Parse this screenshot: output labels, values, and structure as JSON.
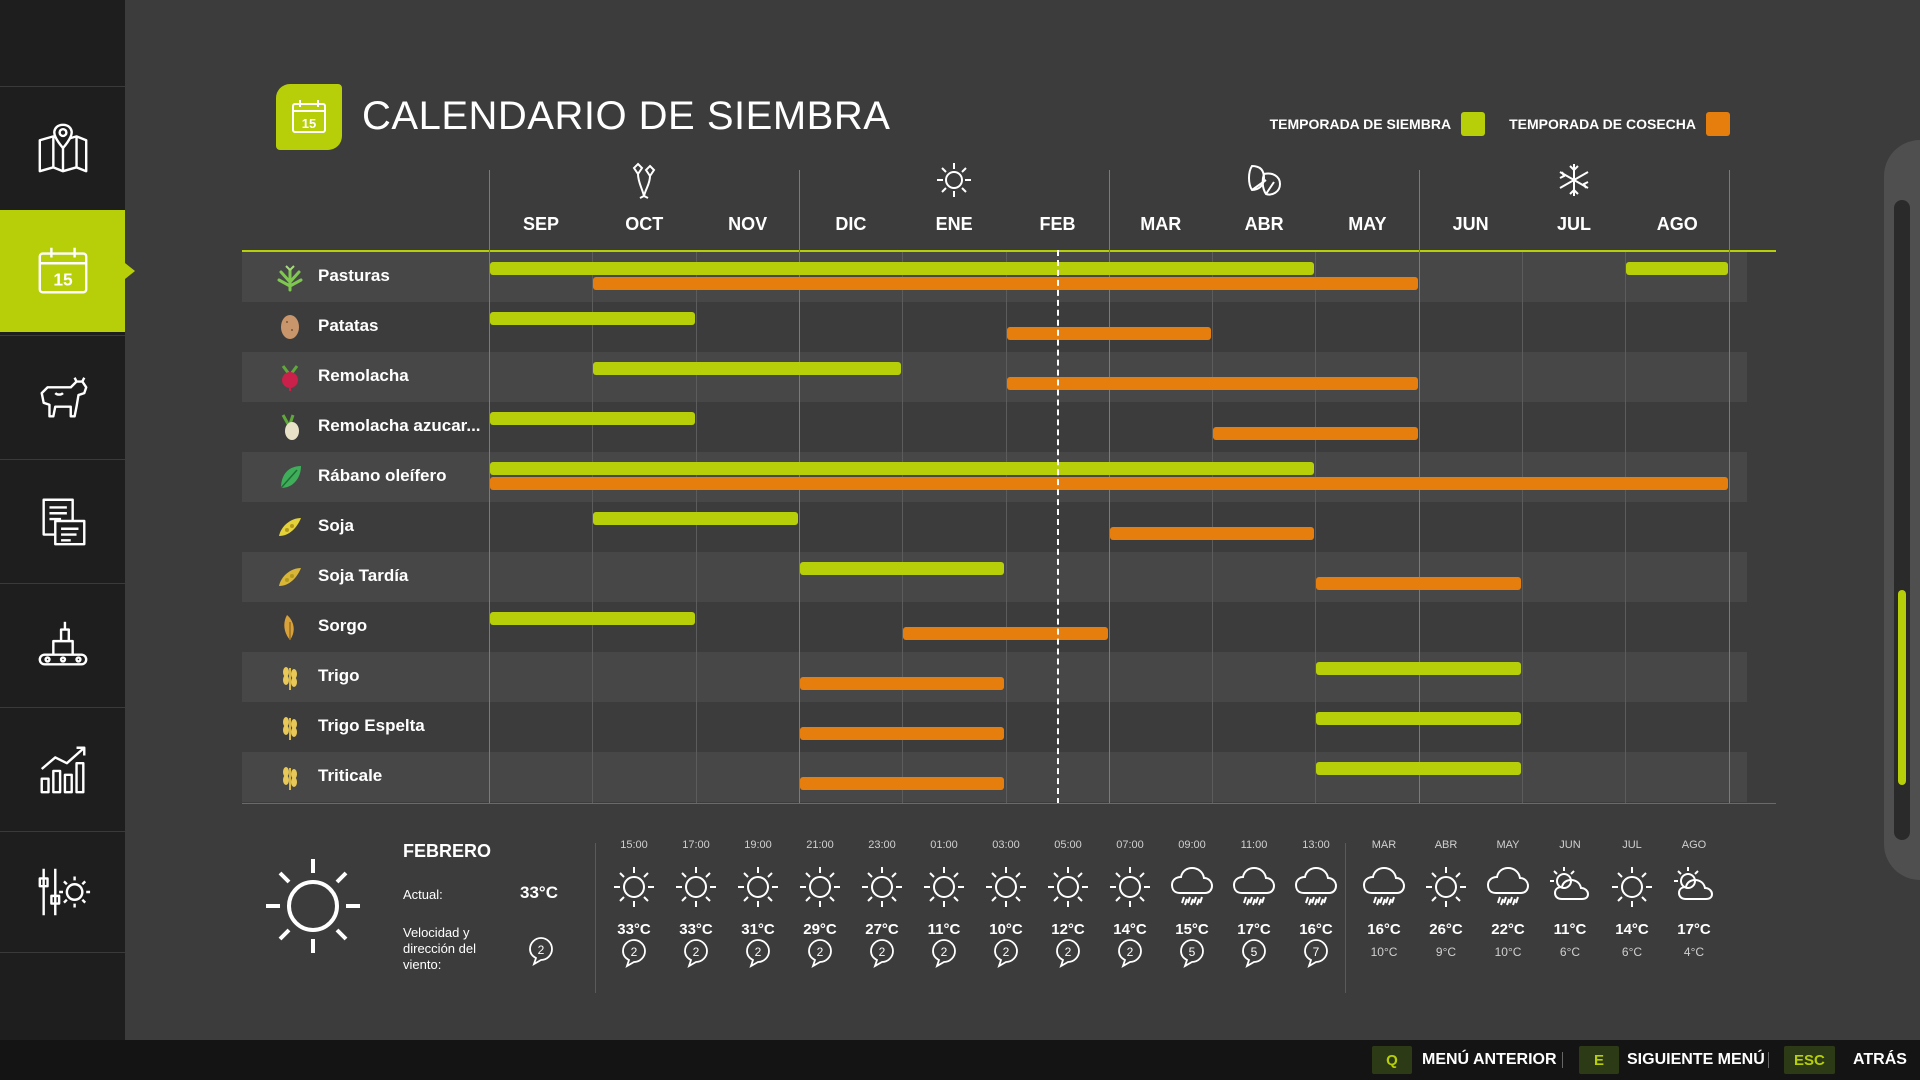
{
  "app": {
    "title": "CALENDARIO DE SIEMBRA",
    "accent_color": "#b7cf08",
    "harvest_color": "#e67e0e"
  },
  "sidebar": {
    "items": [
      {
        "icon": "map-icon",
        "active": false
      },
      {
        "icon": "calendar-icon",
        "label": "15",
        "active": true
      },
      {
        "icon": "animals-icon",
        "active": false
      },
      {
        "icon": "contracts-icon",
        "active": false
      },
      {
        "icon": "production-icon",
        "active": false
      },
      {
        "icon": "statistics-icon",
        "active": false
      },
      {
        "icon": "settings-icon",
        "active": false
      }
    ]
  },
  "header": {
    "calendar_day": "15",
    "legend": {
      "sowing_label": "TEMPORADA DE SIEMBRA",
      "harvest_label": "TEMPORADA DE COSECHA"
    }
  },
  "calendar": {
    "seasons": [
      {
        "icon": "flower-icon",
        "name": "spring"
      },
      {
        "icon": "sun-icon",
        "name": "summer"
      },
      {
        "icon": "leaf-icon",
        "name": "autumn"
      },
      {
        "icon": "snowflake-icon",
        "name": "winter"
      }
    ],
    "months": [
      "SEP",
      "OCT",
      "NOV",
      "DIC",
      "ENE",
      "FEB",
      "MAR",
      "ABR",
      "MAY",
      "JUN",
      "JUL",
      "AGO"
    ],
    "current_month_index": 5,
    "crops": [
      {
        "name": "Pasturas",
        "icon": "grass-icon",
        "sow": [
          [
            0,
            8
          ],
          [
            11,
            12
          ]
        ],
        "harvest": [
          [
            1,
            9
          ]
        ]
      },
      {
        "name": "Patatas",
        "icon": "potato-icon",
        "sow": [
          [
            0,
            2
          ]
        ],
        "harvest": [
          [
            5,
            7
          ]
        ]
      },
      {
        "name": "Remolacha",
        "icon": "beetroot-icon",
        "sow": [
          [
            1,
            4
          ]
        ],
        "harvest": [
          [
            5,
            9
          ]
        ]
      },
      {
        "name": "Remolacha azucar...",
        "icon": "sugarbeet-icon",
        "sow": [
          [
            0,
            2
          ]
        ],
        "harvest": [
          [
            7,
            9
          ]
        ]
      },
      {
        "name": "Rábano oleífero",
        "icon": "oilradish-icon",
        "sow": [
          [
            0,
            8
          ]
        ],
        "harvest": [
          [
            0,
            12
          ]
        ]
      },
      {
        "name": "Soja",
        "icon": "soybean-icon",
        "sow": [
          [
            1,
            3
          ]
        ],
        "harvest": [
          [
            6,
            8
          ]
        ]
      },
      {
        "name": "Soja Tardía",
        "icon": "soybean-late-icon",
        "sow": [
          [
            3,
            5
          ]
        ],
        "harvest": [
          [
            8,
            10
          ]
        ]
      },
      {
        "name": "Sorgo",
        "icon": "sorghum-icon",
        "sow": [
          [
            0,
            2
          ]
        ],
        "harvest": [
          [
            4,
            6
          ]
        ]
      },
      {
        "name": "Trigo",
        "icon": "wheat-icon",
        "sow": [
          [
            8,
            10
          ]
        ],
        "harvest": [
          [
            3,
            5
          ]
        ]
      },
      {
        "name": "Trigo Espelta",
        "icon": "spelt-icon",
        "sow": [
          [
            8,
            10
          ]
        ],
        "harvest": [
          [
            3,
            5
          ]
        ]
      },
      {
        "name": "Triticale",
        "icon": "triticale-icon",
        "sow": [
          [
            8,
            10
          ]
        ],
        "harvest": [
          [
            3,
            5
          ]
        ]
      }
    ]
  },
  "weather": {
    "month": "FEBRERO",
    "current_label": "Actual:",
    "current_temp": "33°C",
    "wind_label": "Velocidad y dirección del viento:",
    "current_wind": "2",
    "hourly": [
      {
        "time": "15:00",
        "icon": "sun",
        "temp": "33°C",
        "wind": "2"
      },
      {
        "time": "17:00",
        "icon": "sun",
        "temp": "33°C",
        "wind": "2"
      },
      {
        "time": "19:00",
        "icon": "sun",
        "temp": "31°C",
        "wind": "2"
      },
      {
        "time": "21:00",
        "icon": "sun",
        "temp": "29°C",
        "wind": "2"
      },
      {
        "time": "23:00",
        "icon": "sun",
        "temp": "27°C",
        "wind": "2"
      },
      {
        "time": "01:00",
        "icon": "sun",
        "temp": "11°C",
        "wind": "2"
      },
      {
        "time": "03:00",
        "icon": "sun",
        "temp": "10°C",
        "wind": "2"
      },
      {
        "time": "05:00",
        "icon": "sun",
        "temp": "12°C",
        "wind": "2"
      },
      {
        "time": "07:00",
        "icon": "sun",
        "temp": "14°C",
        "wind": "2"
      },
      {
        "time": "09:00",
        "icon": "rain",
        "temp": "15°C",
        "wind": "5"
      },
      {
        "time": "11:00",
        "icon": "rain",
        "temp": "17°C",
        "wind": "5"
      },
      {
        "time": "13:00",
        "icon": "rain",
        "temp": "16°C",
        "wind": "7"
      }
    ],
    "monthly": [
      {
        "month": "MAR",
        "icon": "rain",
        "high": "16°C",
        "low": "10°C"
      },
      {
        "month": "ABR",
        "icon": "sun",
        "high": "26°C",
        "low": "9°C"
      },
      {
        "month": "MAY",
        "icon": "rain",
        "high": "22°C",
        "low": "10°C"
      },
      {
        "month": "JUN",
        "icon": "partly-cloudy",
        "high": "11°C",
        "low": "6°C"
      },
      {
        "month": "JUL",
        "icon": "sun",
        "high": "14°C",
        "low": "6°C"
      },
      {
        "month": "AGO",
        "icon": "partly-cloudy",
        "high": "17°C",
        "low": "4°C"
      }
    ]
  },
  "footer": {
    "buttons": [
      {
        "key": "Q",
        "label": "MENÚ ANTERIOR"
      },
      {
        "key": "E",
        "label": "SIGUIENTE MENÚ"
      },
      {
        "key": "ESC",
        "label": "ATRÁS"
      }
    ]
  }
}
